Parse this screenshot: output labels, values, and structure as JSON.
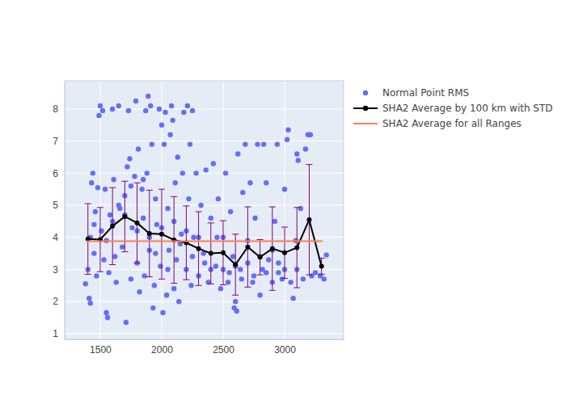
{
  "chart_data": {
    "type": "scatter",
    "xlim": [
      1211,
      3480
    ],
    "xticks": [
      1500,
      2000,
      2500,
      3000
    ],
    "ylim": [
      0.82,
      8.88
    ],
    "yticks": [
      1,
      2,
      3,
      4,
      5,
      6,
      7,
      8
    ],
    "grid": true,
    "legend": "right",
    "series": [
      {
        "name": "Normal Point RMS",
        "type": "scatter",
        "marker": "circle",
        "color": "#636efa",
        "x": [
          1380,
          1400,
          1410,
          1420,
          1420,
          1430,
          1440,
          1450,
          1460,
          1470,
          1480,
          1490,
          1500,
          1510,
          1520,
          1530,
          1540,
          1550,
          1560,
          1570,
          1580,
          1600,
          1610,
          1620,
          1630,
          1650,
          1660,
          1680,
          1700,
          1710,
          1720,
          1730,
          1740,
          1750,
          1760,
          1780,
          1790,
          1800,
          1810,
          1820,
          1840,
          1850,
          1860,
          1870,
          1880,
          1890,
          1900,
          1910,
          1920,
          1930,
          1940,
          1950,
          1960,
          1980,
          1990,
          2000,
          2010,
          2020,
          2030,
          2040,
          2050,
          2060,
          2070,
          2080,
          2090,
          2100,
          2110,
          2120,
          2130,
          2140,
          2160,
          2170,
          2180,
          2200,
          2210,
          2220,
          2230,
          2240,
          2250,
          2260,
          2280,
          2300,
          2320,
          2340,
          2360,
          2380,
          2400,
          2420,
          2440,
          2460,
          2480,
          2500,
          2520,
          2540,
          2560,
          2580,
          2590,
          2600,
          2610,
          2620,
          2640,
          2660,
          2680,
          2700,
          2720,
          2740,
          2760,
          2780,
          2800,
          2820,
          2830,
          2850,
          2870,
          2900,
          2920,
          2940,
          2950,
          2980,
          3000,
          3020,
          3030,
          3050,
          3070,
          3090,
          3100,
          3110,
          3130,
          3150,
          3170,
          3190,
          3210,
          3220,
          3250,
          3290,
          3320,
          3340,
          1450,
          1550,
          1600,
          1650,
          1700,
          1750,
          1800,
          1850,
          1900,
          1950,
          2000,
          2050,
          2100,
          2150,
          2200,
          2250,
          2300,
          2350,
          2400,
          2450,
          2500,
          2550,
          2600,
          2650,
          2700,
          2750,
          2800,
          2850,
          2900,
          2950,
          3000,
          3100
        ],
        "values": [
          2.55,
          3.0,
          2.1,
          1.95,
          4.0,
          5.7,
          6.0,
          3.5,
          4.8,
          2.8,
          5.55,
          7.8,
          8.1,
          4.2,
          7.95,
          3.3,
          5.5,
          1.65,
          1.5,
          2.9,
          4.7,
          8.0,
          5.8,
          3.4,
          2.6,
          8.1,
          4.9,
          3.7,
          5.3,
          1.35,
          6.2,
          7.95,
          6.45,
          2.7,
          4.3,
          5.9,
          8.25,
          3.2,
          6.75,
          2.3,
          5.5,
          4.6,
          2.8,
          7.95,
          6.0,
          8.4,
          3.6,
          8.1,
          6.9,
          1.8,
          2.5,
          5.2,
          4.4,
          8.0,
          3.1,
          7.5,
          1.65,
          6.9,
          7.9,
          2.2,
          4.9,
          3.6,
          7.2,
          8.1,
          7.65,
          2.4,
          5.7,
          3.3,
          6.5,
          2.0,
          4.1,
          6.0,
          7.9,
          3.0,
          8.1,
          5.2,
          6.9,
          2.5,
          7.95,
          4.0,
          6.0,
          2.8,
          5.0,
          3.5,
          6.1,
          2.6,
          4.6,
          6.3,
          3.1,
          5.2,
          2.4,
          4.0,
          6.0,
          2.6,
          4.8,
          3.4,
          1.8,
          2.0,
          1.7,
          6.6,
          3.0,
          5.4,
          6.9,
          3.9,
          5.7,
          2.6,
          4.6,
          6.9,
          2.2,
          3.0,
          6.9,
          5.7,
          3.3,
          2.6,
          4.5,
          6.9,
          3.2,
          2.7,
          5.5,
          7.05,
          7.35,
          2.6,
          2.1,
          3.9,
          6.6,
          6.4,
          4.9,
          2.7,
          6.75,
          7.2,
          7.2,
          2.8,
          2.9,
          2.8,
          2.7,
          3.45,
          4.4,
          3.9,
          4.5,
          5.0,
          4.7,
          5.6,
          4.2,
          5.8,
          4.0,
          3.5,
          4.3,
          3.0,
          4.5,
          3.8,
          4.2,
          3.4,
          4.0,
          3.2,
          3.0,
          4.0,
          3.0,
          2.9,
          3.1,
          2.7,
          3.2,
          2.8,
          3.4,
          2.9,
          3.6,
          2.9,
          3.0,
          3.0
        ]
      },
      {
        "name": "SHA2 Average by 100 km with STD",
        "type": "line",
        "marker": "circle",
        "color": "#000000",
        "error_color": "#800080",
        "x": [
          1400,
          1500,
          1600,
          1700,
          1800,
          1900,
          2000,
          2100,
          2200,
          2300,
          2400,
          2500,
          2600,
          2700,
          2800,
          2900,
          3000,
          3100,
          3200,
          3300
        ],
        "values": [
          3.95,
          3.93,
          4.35,
          4.65,
          4.45,
          4.12,
          4.1,
          3.92,
          3.83,
          3.65,
          3.5,
          3.52,
          3.15,
          3.7,
          3.38,
          3.65,
          3.52,
          3.68,
          4.55,
          3.1
        ],
        "error": [
          1.1,
          1.0,
          1.2,
          1.1,
          1.25,
          1.35,
          1.4,
          1.35,
          1.15,
          1.15,
          0.95,
          1.0,
          0.95,
          1.25,
          0.55,
          1.3,
          0.8,
          1.25,
          1.72,
          0.25
        ]
      },
      {
        "name": "SHA2 Average for all Ranges",
        "type": "line",
        "color": "#ff7f50",
        "x": [
          1390,
          3310
        ],
        "values": [
          3.88,
          3.88
        ]
      }
    ]
  }
}
